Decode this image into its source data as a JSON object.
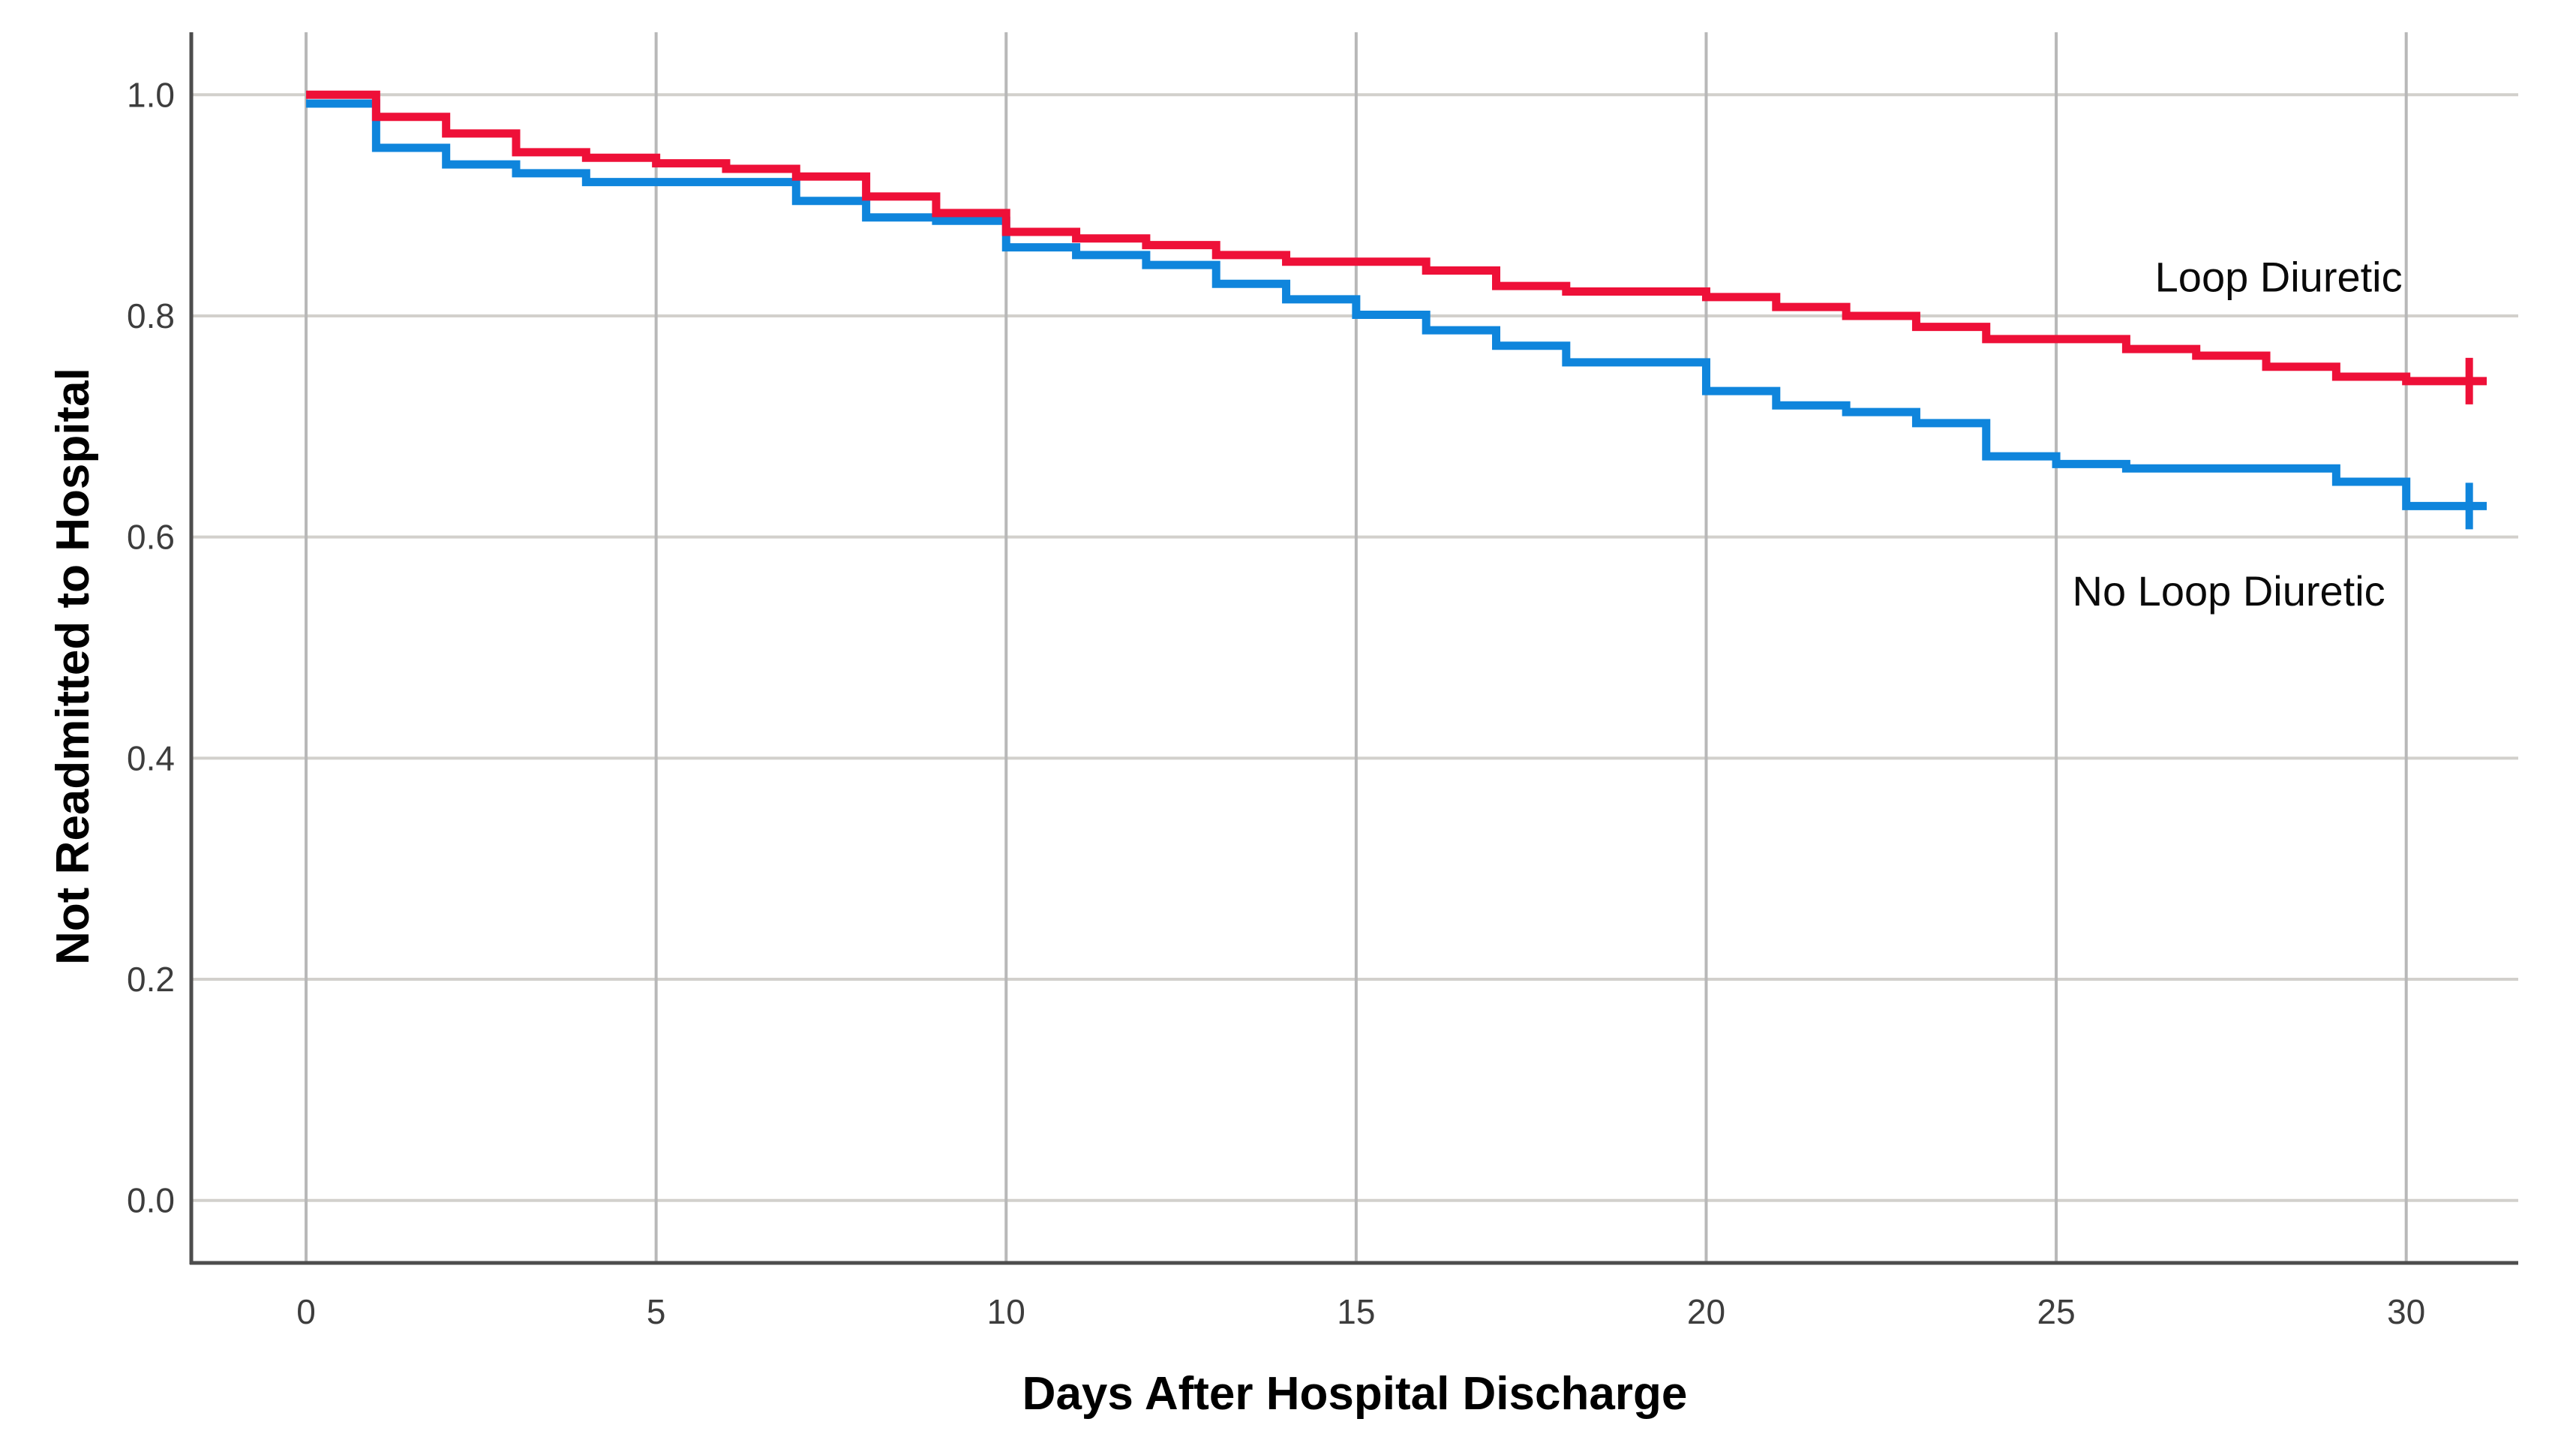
{
  "chart_data": {
    "type": "line",
    "subtype": "kaplan-meier-step",
    "title": "",
    "xlabel": "Days After Hospital Discharge",
    "ylabel": "Not Readmitted to Hospital",
    "xlim": [
      -1.64,
      31.6
    ],
    "ylim": [
      -0.0565,
      1.0565
    ],
    "grid": true,
    "legend_position": "inline-annotations",
    "x_ticks": [
      0,
      5,
      10,
      15,
      20,
      25,
      30
    ],
    "x_tick_labels": [
      "0",
      "5",
      "10",
      "15",
      "20",
      "25",
      "30"
    ],
    "y_ticks": [
      0.0,
      0.2,
      0.4,
      0.6,
      0.8,
      1.0
    ],
    "y_tick_labels": [
      "0.0",
      "0.2",
      "0.4",
      "0.6",
      "0.8",
      "1.0"
    ],
    "x": [
      0,
      1,
      2,
      3,
      4,
      5,
      6,
      7,
      8,
      9,
      10,
      11,
      12,
      13,
      14,
      15,
      16,
      17,
      18,
      19,
      20,
      21,
      22,
      23,
      24,
      25,
      26,
      27,
      28,
      29,
      30,
      31
    ],
    "series": [
      {
        "name": "No Loop Diuretic",
        "color": "#0F85DC",
        "values": [
          0.992,
          0.952,
          0.937,
          0.929,
          0.921,
          0.921,
          0.921,
          0.904,
          0.889,
          0.886,
          0.862,
          0.855,
          0.846,
          0.829,
          0.815,
          0.801,
          0.787,
          0.773,
          0.758,
          0.758,
          0.732,
          0.719,
          0.713,
          0.703,
          0.673,
          0.666,
          0.662,
          0.662,
          0.662,
          0.65,
          0.628,
          0.628
        ],
        "censor_marks": [
          {
            "day": 30.9,
            "value": 0.628
          }
        ],
        "end_day": 31.15
      },
      {
        "name": "Loop Diuretic",
        "color": "#EE1038",
        "values": [
          1.0,
          0.98,
          0.965,
          0.948,
          0.943,
          0.938,
          0.933,
          0.926,
          0.908,
          0.893,
          0.876,
          0.87,
          0.864,
          0.855,
          0.849,
          0.849,
          0.841,
          0.827,
          0.822,
          0.822,
          0.817,
          0.808,
          0.8,
          0.79,
          0.779,
          0.779,
          0.77,
          0.764,
          0.754,
          0.745,
          0.741,
          0.741
        ],
        "censor_marks": [
          {
            "day": 30.9,
            "value": 0.741
          }
        ],
        "end_day": 31.15
      }
    ],
    "annotations": [
      {
        "text": "Loop Diuretic",
        "day": 26.41,
        "value": 0.822,
        "anchor": "start"
      },
      {
        "text": "No Loop Diuretic",
        "day": 25.23,
        "value": 0.538,
        "anchor": "start"
      }
    ],
    "colors": {
      "plot_background": "#ffffff",
      "h_gridline": "#d2d0cc",
      "v_gridline": "#b8b8b8",
      "axis_spine": "#4d4d4d",
      "tick_text": "#3d3d3d",
      "title_text": "#000000"
    }
  }
}
